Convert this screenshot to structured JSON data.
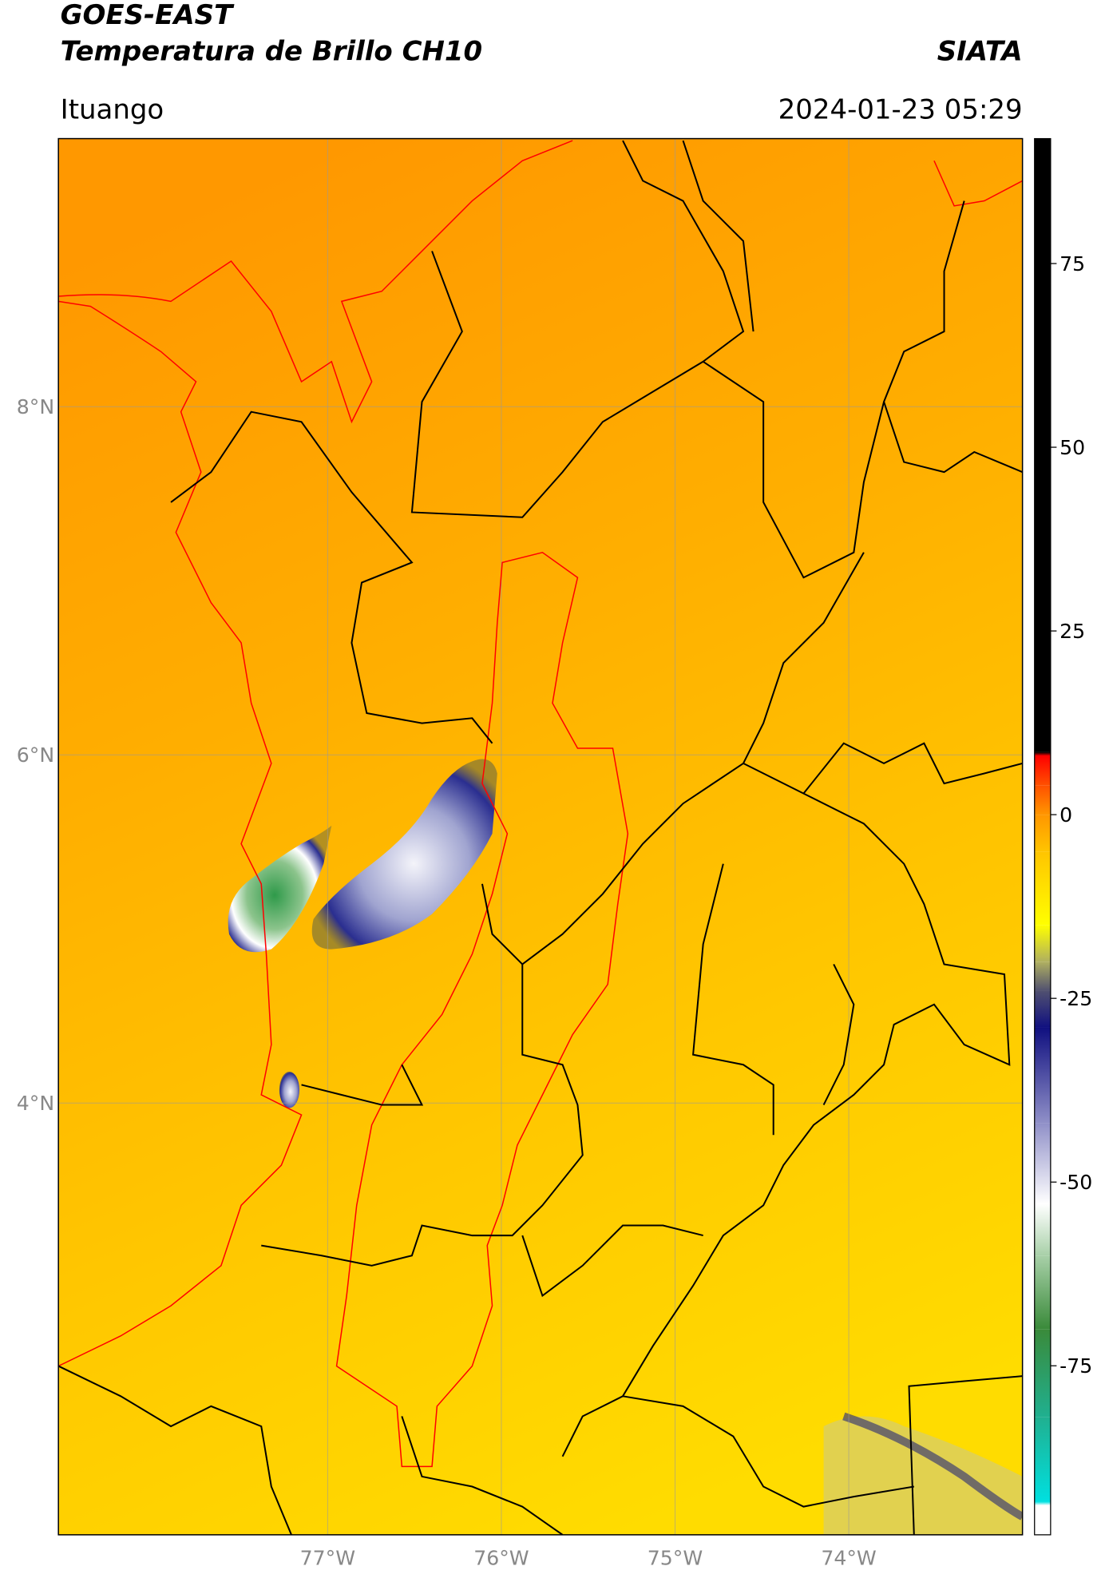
{
  "header": {
    "title": "GOES-EAST",
    "subtitle": "Temperatura de Brillo CH10",
    "source": "SIATA",
    "location": "Ituango",
    "datetime": "2024-01-23 05:29"
  },
  "map": {
    "xlim": [
      -78.55,
      -73.0
    ],
    "ylim": [
      1.52,
      9.54
    ],
    "xticks": [
      {
        "value": -77,
        "label": "77°W"
      },
      {
        "value": -76,
        "label": "76°W"
      },
      {
        "value": -75,
        "label": "75°W"
      },
      {
        "value": -74,
        "label": "74°W"
      }
    ],
    "yticks": [
      {
        "value": 4,
        "label": "4°N"
      },
      {
        "value": 6,
        "label": "6°N"
      },
      {
        "value": 8,
        "label": "8°N"
      }
    ],
    "grid": true
  },
  "colorbar": {
    "clim": [
      -98,
      92
    ],
    "ticks": [
      -75,
      -50,
      -25,
      0,
      25,
      50,
      75
    ],
    "stops": [
      {
        "value": -98,
        "color": "#ffffff"
      },
      {
        "value": -94,
        "color": "#ffffff"
      },
      {
        "value": -93.5,
        "color": "#00e0e0"
      },
      {
        "value": -82,
        "color": "#20b090"
      },
      {
        "value": -70,
        "color": "#3a8a3a"
      },
      {
        "value": -60,
        "color": "#a8d0a8"
      },
      {
        "value": -53,
        "color": "#ffffff"
      },
      {
        "value": -42,
        "color": "#9090c8"
      },
      {
        "value": -29,
        "color": "#101080"
      },
      {
        "value": -24,
        "color": "#505070"
      },
      {
        "value": -20,
        "color": "#b0b060"
      },
      {
        "value": -15,
        "color": "#ffff00"
      },
      {
        "value": -5,
        "color": "#ffc400"
      },
      {
        "value": 0,
        "color": "#ff9600"
      },
      {
        "value": 4,
        "color": "#ff5000"
      },
      {
        "value": 8,
        "color": "#ff0000"
      },
      {
        "value": 8.5,
        "color": "#000000"
      },
      {
        "value": 92,
        "color": "#000000"
      }
    ]
  }
}
